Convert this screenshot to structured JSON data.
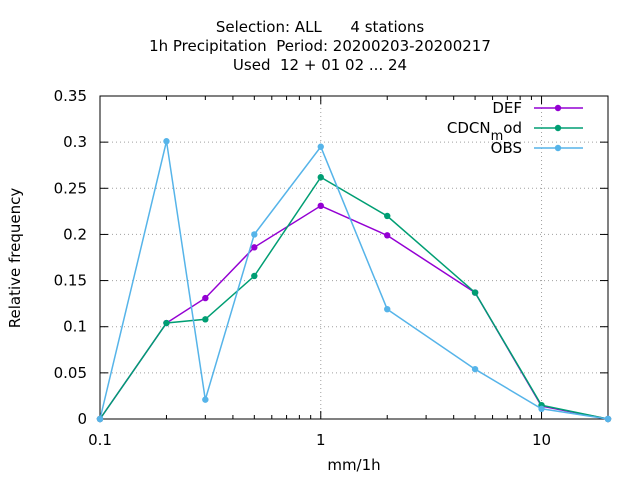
{
  "chart_data": {
    "type": "line",
    "title_lines": [
      "Selection: ALL      4 stations",
      "1h Precipitation  Period: 20200203-20200217",
      "Used  12 + 01 02 ... 24"
    ],
    "xlabel": "mm/1h",
    "ylabel": "Relative frequency",
    "xscale": "log",
    "xlim": [
      0.1,
      20
    ],
    "ylim": [
      0,
      0.35
    ],
    "x_ticks": [
      0.1,
      1,
      10
    ],
    "x_tick_labels": [
      "0.1",
      "1",
      "10"
    ],
    "y_ticks": [
      0,
      0.05,
      0.1,
      0.15,
      0.2,
      0.25,
      0.3,
      0.35
    ],
    "y_tick_labels": [
      "0",
      "0.05",
      "0.1",
      "0.15",
      "0.2",
      "0.25",
      "0.3",
      "0.35"
    ],
    "grid": true,
    "legend_position": "top-right",
    "x": [
      0.1,
      0.2,
      0.3,
      0.5,
      1,
      2,
      5,
      10,
      20
    ],
    "series": [
      {
        "name": "DEF",
        "color": "#9400d3",
        "values": [
          0,
          0.104,
          0.131,
          0.186,
          0.231,
          0.199,
          0.137,
          0.014,
          0
        ]
      },
      {
        "name": "CDCN_mod",
        "color": "#009e73",
        "values": [
          0,
          0.104,
          0.108,
          0.155,
          0.262,
          0.22,
          0.137,
          0.015,
          0
        ]
      },
      {
        "name": "OBS",
        "color": "#56b4e9",
        "values": [
          0,
          0.301,
          0.021,
          0.2,
          0.295,
          0.119,
          0.054,
          0.011,
          0
        ]
      }
    ]
  }
}
